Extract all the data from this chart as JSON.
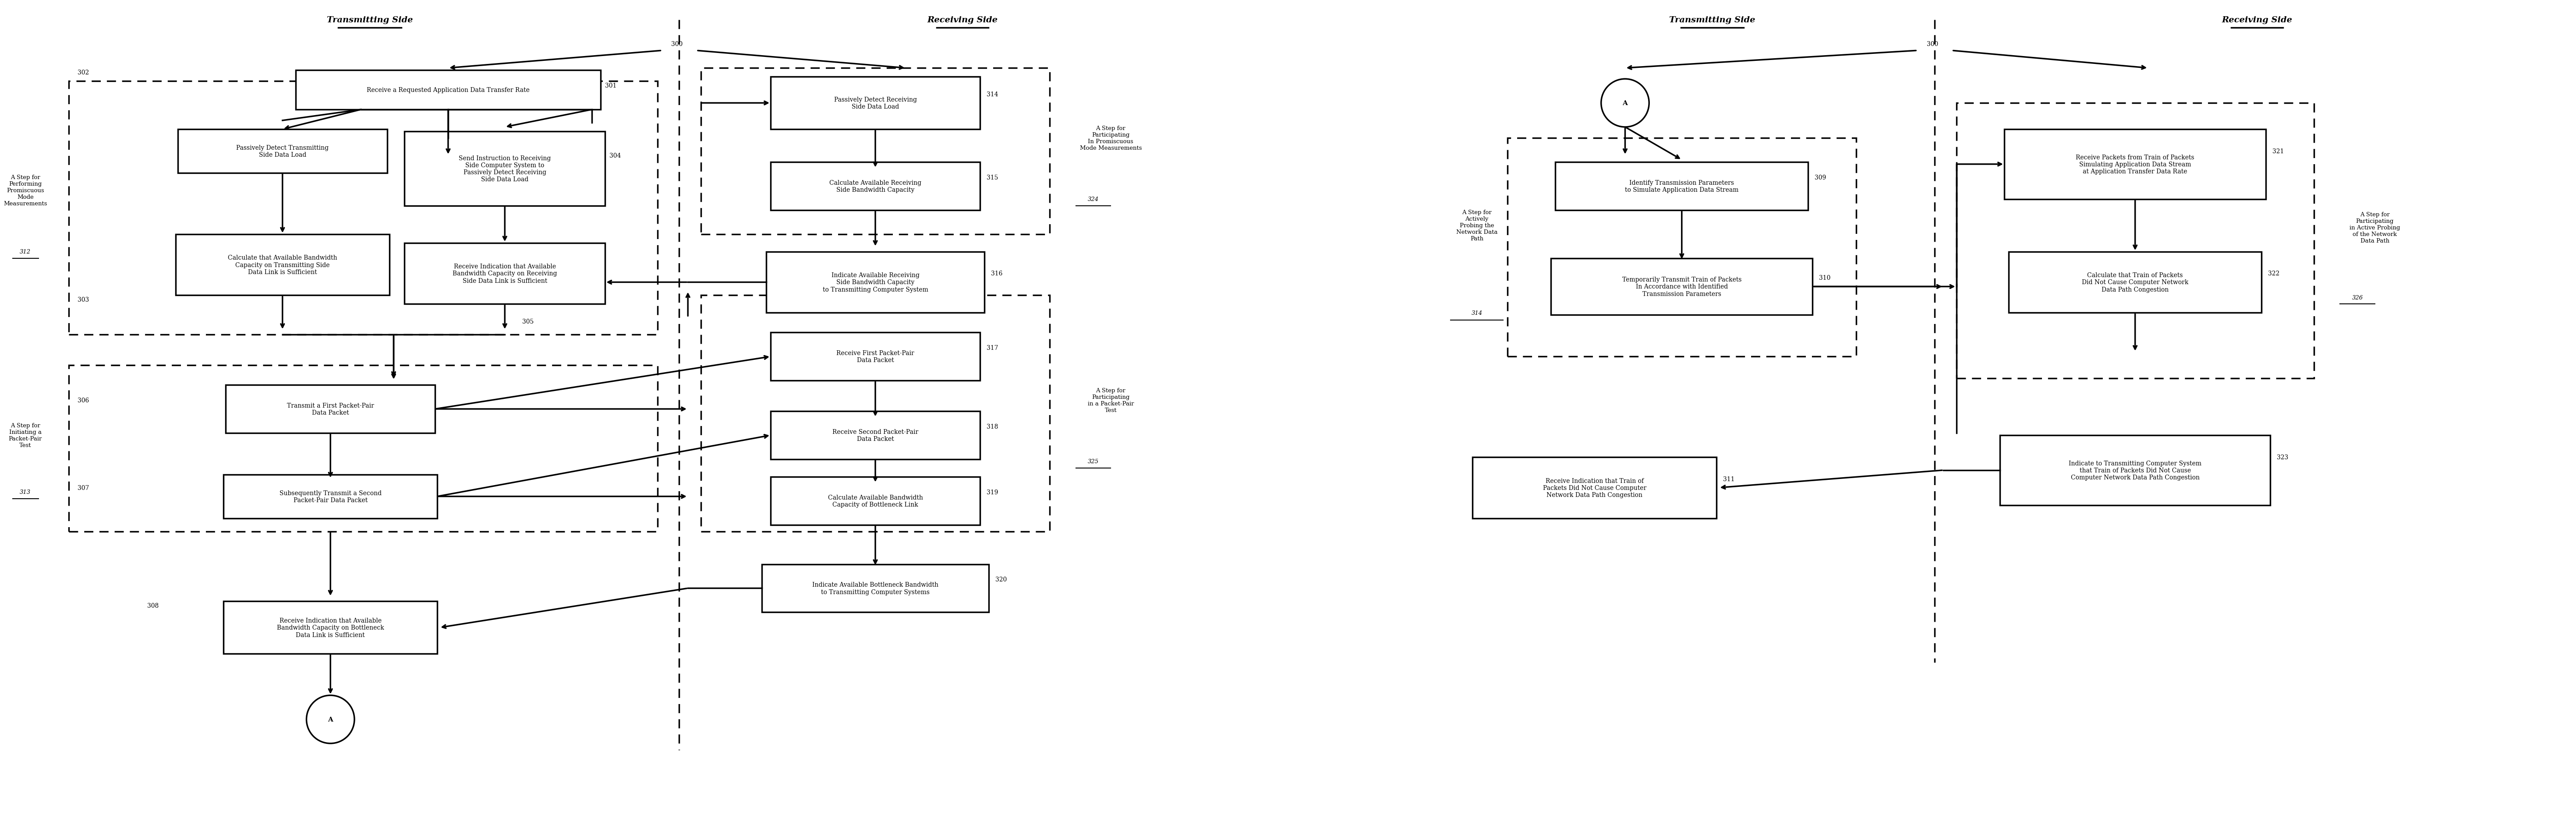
{
  "fig_width": 58.8,
  "fig_height": 19.15,
  "bg_color": "#ffffff",
  "left_tx_header": "Transmitting Side",
  "left_rx_header": "Receiving Side",
  "right_tx_header": "Transmitting Side",
  "right_rx_header": "Receiving Side",
  "box301": "Receive a Requested Application Data Transfer Rate",
  "box_passively_tx": "Passively Detect Transmitting\nSide Data Load",
  "box_calc_tx": "Calculate that Available Bandwidth\nCapacity on Transmitting Side\nData Link is Sufficient",
  "box_send_instr": "Send Instruction to Receiving\nSide Computer System to\nPassively Detect Receiving\nSide Data Load",
  "box_recv_ind_rx": "Receive Indication that Available\nBandwidth Capacity on Receiving\nSide Data Link is Sufficient",
  "box_tx_first": "Transmit a First Packet-Pair\nData Packet",
  "box_tx_second": "Subsequently Transmit a Second\nPacket-Pair Data Packet",
  "box308": "Receive Indication that Available\nBandwidth Capacity on Bottleneck\nData Link is Sufficient",
  "box_passively_rx": "Passively Detect Receiving\nSide Data Load",
  "box_calc_rx": "Calculate Available Receiving\nSide Bandwidth Capacity",
  "box_indicate_rx": "Indicate Available Receiving\nSide Bandwidth Capacity\nto Transmitting Computer System",
  "box_rx_first": "Receive First Packet-Pair\nData Packet",
  "box_rx_second": "Receive Second Packet-Pair\nData Packet",
  "box_calc_bottleneck": "Calculate Available Bandwidth\nCapacity of Bottleneck Link",
  "box_indicate_bottleneck": "Indicate Available Bottleneck Bandwidth\nto Transmitting Computer Systems",
  "box309": "Identify Transmission Parameters\nto Simulate Application Data Stream",
  "box310": "Temporarily Transmit Train of Packets\nIn Accordance with Identified\nTransmission Parameters",
  "box311": "Receive Indication that Train of\nPackets Did Not Cause Computer\nNetwork Data Path Congestion",
  "box321": "Receive Packets from Train of Packets\nSimulating Application Data Stream\nat Application Transfer Data Rate",
  "box322": "Calculate that Train of Packets\nDid Not Cause Computer Network\nData Path Congestion",
  "box323": "Indicate to Transmitting Computer System\nthat Train of Packets Did Not Cause\nComputer Network Data Path Congestion",
  "lbl312": "A Step for\nPerforming\nPromiscuous\nMode\nMeasurements\n312",
  "lbl313": "A Step for\nInitiating a\nPacket-Pair\nTest\n313",
  "lbl324": "A Step for\nParticipating\nIn Promiscuous\nMode Measurements\n324",
  "lbl325": "A Step for\nParticipating\nin a Packet-Pair\nTest\n325",
  "lbl314_right": "A Step for\nActively\nProbing the\nNetwork Data\nPath\n314",
  "lbl326": "A Step for\nParticipating\nin Active Probing\nof the Network\nData Path\n326"
}
